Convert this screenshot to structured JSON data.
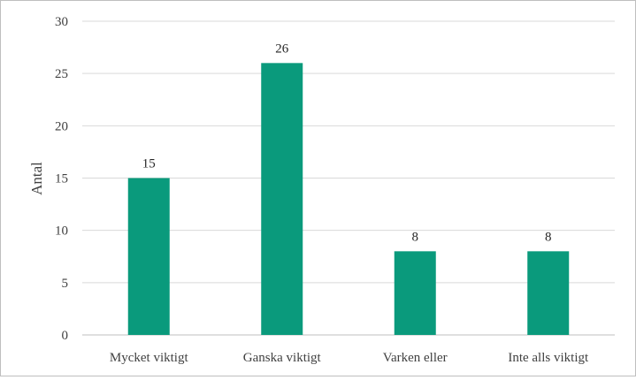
{
  "chart_data": {
    "type": "bar",
    "title": "",
    "xlabel": "",
    "ylabel": "Antal",
    "categories": [
      "Mycket viktigt",
      "Ganska viktigt",
      "Varken eller",
      "Inte alls viktigt"
    ],
    "values": [
      15,
      26,
      8,
      8
    ],
    "data_labels": [
      "15",
      "26",
      "8",
      "8"
    ],
    "ylim": [
      0,
      30
    ],
    "yticks": [
      0,
      5,
      10,
      15,
      20,
      25,
      30
    ],
    "grid": true,
    "legend": "none",
    "colors": {
      "bar": "#0a9a7c",
      "grid": "#d9d9d9",
      "text": "#404040"
    }
  }
}
